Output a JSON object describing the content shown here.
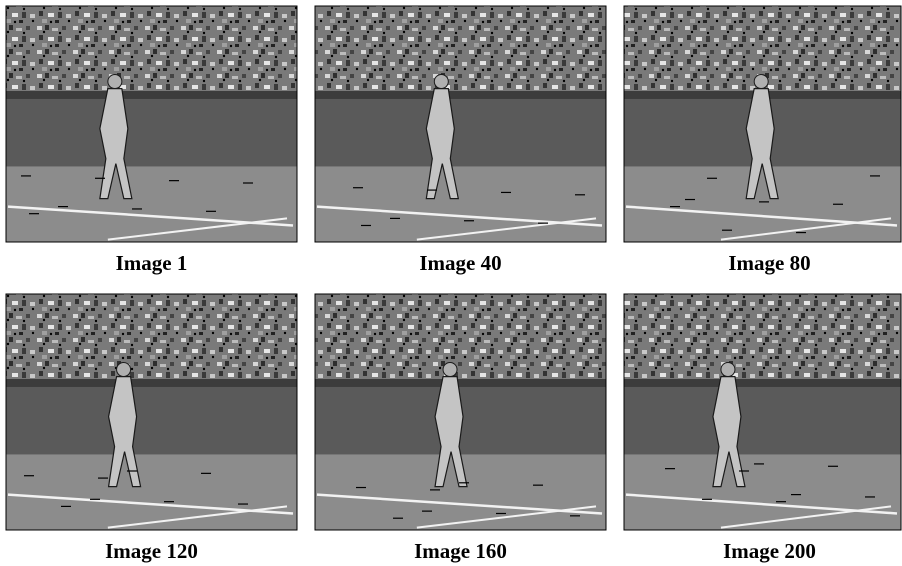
{
  "figure": {
    "panels": [
      {
        "caption": "Image 1"
      },
      {
        "caption": "Image 40"
      },
      {
        "caption": "Image 80"
      },
      {
        "caption": "Image 120"
      },
      {
        "caption": "Image 160"
      },
      {
        "caption": "Image 200"
      }
    ]
  }
}
